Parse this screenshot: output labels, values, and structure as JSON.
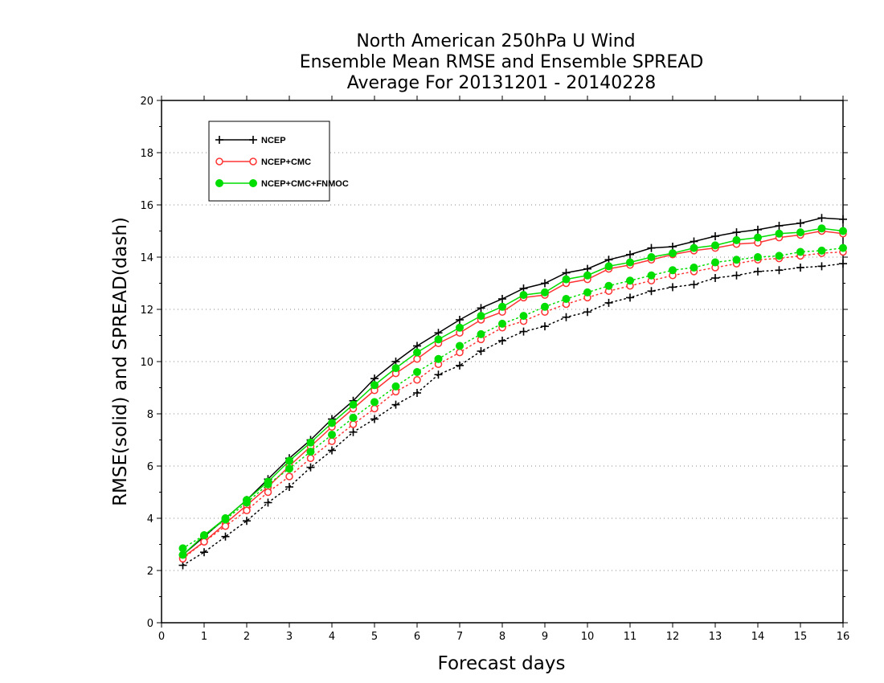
{
  "chart_data": {
    "type": "line",
    "title": [
      "North American 250hPa U Wind",
      "Ensemble Mean RMSE and Ensemble SPREAD",
      "Average For 20131201 - 20140228"
    ],
    "xlabel": "Forecast days",
    "ylabel": "RMSE(solid) and SPREAD(dash)",
    "xlim": [
      0,
      16
    ],
    "ylim": [
      0,
      20
    ],
    "xticks": [
      "0",
      "1",
      "2",
      "3",
      "4",
      "5",
      "6",
      "7",
      "8",
      "9",
      "10",
      "11",
      "12",
      "13",
      "14",
      "15",
      "16"
    ],
    "yticks": [
      "0",
      "2",
      "4",
      "6",
      "8",
      "10",
      "12",
      "14",
      "16",
      "18",
      "20"
    ],
    "grid": "horizontal dotted",
    "legend_position": "top-left",
    "x": [
      0.5,
      1,
      1.5,
      2,
      2.5,
      3,
      3.5,
      4,
      4.5,
      5,
      5.5,
      6,
      6.5,
      7,
      7.5,
      8,
      8.5,
      9,
      9.5,
      10,
      10.5,
      11,
      11.5,
      12,
      12.5,
      13,
      13.5,
      14,
      14.5,
      15,
      15.5,
      16
    ],
    "series": [
      {
        "name": "NCEP",
        "color": "#000000",
        "marker": "plus",
        "rmse": [
          2.6,
          3.3,
          4.0,
          4.7,
          5.5,
          6.3,
          7.0,
          7.8,
          8.5,
          9.35,
          10.0,
          10.6,
          11.1,
          11.6,
          12.05,
          12.4,
          12.8,
          13.0,
          13.4,
          13.55,
          13.9,
          14.1,
          14.35,
          14.4,
          14.6,
          14.8,
          14.95,
          15.05,
          15.2,
          15.3,
          15.5,
          15.45
        ],
        "spread": [
          2.2,
          2.7,
          3.3,
          3.9,
          4.6,
          5.2,
          5.95,
          6.6,
          7.3,
          7.8,
          8.35,
          8.8,
          9.5,
          9.85,
          10.4,
          10.8,
          11.15,
          11.35,
          11.7,
          11.9,
          12.25,
          12.45,
          12.7,
          12.85,
          12.95,
          13.2,
          13.3,
          13.45,
          13.5,
          13.6,
          13.65,
          13.75
        ]
      },
      {
        "name": "NCEP+CMC",
        "color": "#ff3333",
        "marker": "open-circle",
        "rmse": [
          2.5,
          3.1,
          3.8,
          4.5,
          5.2,
          6.0,
          6.75,
          7.5,
          8.2,
          8.9,
          9.55,
          10.1,
          10.7,
          11.1,
          11.6,
          11.9,
          12.45,
          12.55,
          13.0,
          13.15,
          13.55,
          13.7,
          13.9,
          14.1,
          14.25,
          14.35,
          14.5,
          14.55,
          14.75,
          14.85,
          15.0,
          14.9
        ],
        "spread": [
          2.45,
          3.1,
          3.7,
          4.3,
          5.0,
          5.6,
          6.3,
          6.95,
          7.6,
          8.2,
          8.85,
          9.3,
          9.9,
          10.35,
          10.85,
          11.3,
          11.55,
          11.9,
          12.2,
          12.45,
          12.7,
          12.9,
          13.1,
          13.3,
          13.45,
          13.6,
          13.75,
          13.9,
          13.95,
          14.05,
          14.15,
          14.2
        ]
      },
      {
        "name": "NCEP+CMC+FNMOC",
        "color": "#00dd00",
        "marker": "filled-circle",
        "rmse": [
          2.6,
          3.35,
          4.0,
          4.7,
          5.4,
          6.2,
          6.9,
          7.65,
          8.35,
          9.1,
          9.75,
          10.35,
          10.85,
          11.3,
          11.75,
          12.1,
          12.55,
          12.65,
          13.15,
          13.3,
          13.65,
          13.8,
          14.0,
          14.15,
          14.35,
          14.45,
          14.65,
          14.75,
          14.9,
          14.95,
          15.1,
          15.0
        ],
        "spread": [
          2.85,
          3.35,
          3.95,
          4.6,
          5.3,
          5.9,
          6.55,
          7.2,
          7.85,
          8.45,
          9.05,
          9.6,
          10.1,
          10.6,
          11.05,
          11.45,
          11.75,
          12.1,
          12.4,
          12.65,
          12.9,
          13.1,
          13.3,
          13.5,
          13.6,
          13.8,
          13.9,
          14.0,
          14.05,
          14.2,
          14.25,
          14.35
        ]
      }
    ]
  }
}
